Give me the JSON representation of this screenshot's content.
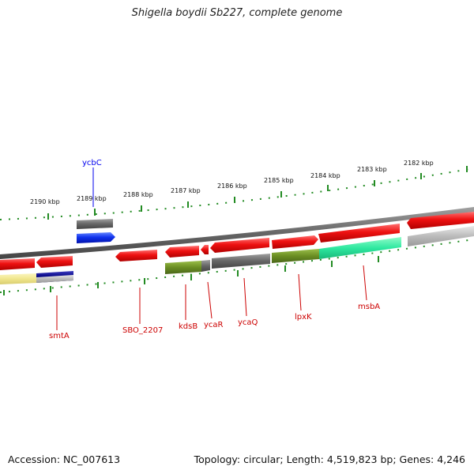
{
  "title": "Shigella boydii Sb227, complete genome",
  "footer": {
    "accession": "Accession: NC_007613",
    "topology": "Topology: circular; Length: 4,519,823 bp; Genes: 4,246"
  },
  "scale_labels": [
    "2190 kbp",
    "2189 kbp",
    "2188 kbp",
    "2187 kbp",
    "2186 kbp",
    "2185 kbp",
    "2184 kbp",
    "2183 kbp",
    "2182 kbp"
  ],
  "genes": [
    {
      "name": "ycbC",
      "color": "#0000ee"
    },
    {
      "name": "smtA",
      "color": "#cc0000"
    },
    {
      "name": "SBO_2207",
      "color": "#cc0000"
    },
    {
      "name": "kdsB",
      "color": "#cc0000"
    },
    {
      "name": "ycaR",
      "color": "#cc0000"
    },
    {
      "name": "ycaQ",
      "color": "#cc0000"
    },
    {
      "name": "lpxK",
      "color": "#cc0000"
    },
    {
      "name": "msbA",
      "color": "#cc0000"
    }
  ],
  "colors": {
    "gene_red": "#ee1111",
    "gene_blue": "#1133ee",
    "backbone": "#808080",
    "tick_green": "#228b22",
    "cog_gray": "#666666",
    "cog_olive": "#6b8e23",
    "cog_teal": "#2ee8a0",
    "cog_yellow": "#f0e68c",
    "cog_navy": "#000080"
  }
}
